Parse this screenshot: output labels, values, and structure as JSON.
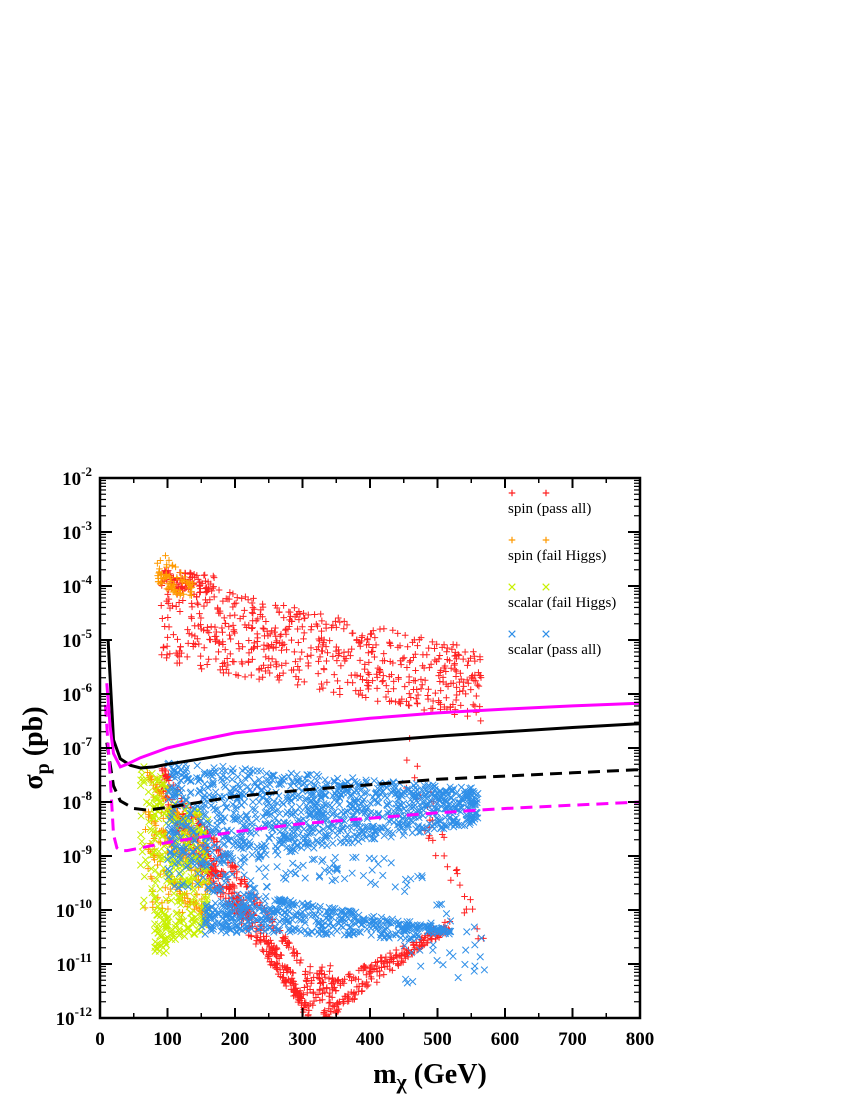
{
  "chart_data": {
    "type": "scatter",
    "title": "",
    "xlabel": "m",
    "xlabel_sub": "χ",
    "xlabel_unit": " (GeV)",
    "ylabel": "σ",
    "ylabel_sub": "p",
    "ylabel_unit": " (pb)",
    "xlim": [
      0,
      800
    ],
    "ylim_log10": [
      -12,
      -2
    ],
    "y_scale": "log",
    "x_ticks": [
      0,
      100,
      200,
      300,
      400,
      500,
      600,
      700,
      800
    ],
    "x_tick_labels": [
      "0",
      "100",
      "200",
      "300",
      "400",
      "500",
      "600",
      "700",
      "800"
    ],
    "y_tick_exponents": [
      -12,
      -11,
      -10,
      -9,
      -8,
      -7,
      -6,
      -5,
      -4,
      -3,
      -2
    ],
    "y_tick_labels": [
      "10",
      "10",
      "10",
      "10",
      "10",
      "10",
      "10",
      "10",
      "10",
      "10",
      "10"
    ],
    "y_tick_sups": [
      "-12",
      "-11",
      "-10",
      "-9",
      "-8",
      "-7",
      "-6",
      "-5",
      "-4",
      "-3",
      "-2"
    ],
    "grid": false,
    "legend_position": "top-right",
    "series": [
      {
        "name": "spin (pass all)",
        "marker": "plus",
        "color": "#ff2020",
        "regions": [
          {
            "kind": "band",
            "x": [
              90,
              565
            ],
            "lo_log": [
              -5.4,
              -6.5
            ],
            "hi_log": [
              -3.8,
              -5.2
            ],
            "n": 600
          },
          {
            "kind": "band",
            "x": [
              90,
              170
            ],
            "lo_log": [
              -4.0,
              -4.2
            ],
            "hi_log": [
              -3.7,
              -3.8
            ],
            "n": 80
          },
          {
            "kind": "diag",
            "from": [
              90,
              -7.4
            ],
            "to": [
              300,
              -11.0
            ],
            "spread": 0.1,
            "n": 130
          },
          {
            "kind": "diag",
            "from": [
              90,
              -7.7
            ],
            "to": [
              290,
              -11.3
            ],
            "spread": 0.1,
            "n": 130
          },
          {
            "kind": "diag",
            "from": [
              100,
              -8.1
            ],
            "to": [
              300,
              -11.6
            ],
            "spread": 0.1,
            "n": 130
          },
          {
            "kind": "diag",
            "from": [
              110,
              -8.5
            ],
            "to": [
              310,
              -11.9
            ],
            "spread": 0.1,
            "n": 130
          },
          {
            "kind": "diag",
            "from": [
              330,
              -12.0
            ],
            "to": [
              520,
              -10.2
            ],
            "spread": 0.1,
            "n": 110
          },
          {
            "kind": "diag",
            "from": [
              320,
              -11.6
            ],
            "to": [
              520,
              -10.3
            ],
            "spread": 0.1,
            "n": 110
          },
          {
            "kind": "band",
            "x": [
              300,
              345
            ],
            "lo_log": [
              -12.0,
              -12.0
            ],
            "hi_log": [
              -11.0,
              -11.0
            ],
            "n": 60
          },
          {
            "kind": "band",
            "x": [
              450,
              570
            ],
            "lo_log": [
              -7.8,
              -10.9
            ],
            "hi_log": [
              -6.5,
              -10.4
            ],
            "n": 35
          }
        ]
      },
      {
        "name": "spin (fail Higgs)",
        "marker": "plus",
        "color": "#ff9a00",
        "regions": [
          {
            "kind": "band",
            "x": [
              85,
              140
            ],
            "lo_log": [
              -4.0,
              -4.3
            ],
            "hi_log": [
              -3.3,
              -3.9
            ],
            "n": 70
          },
          {
            "kind": "diag",
            "from": [
              70,
              -7.5
            ],
            "to": [
              160,
              -9.0
            ],
            "spread": 0.08,
            "n": 60
          },
          {
            "kind": "diag",
            "from": [
              70,
              -8.2
            ],
            "to": [
              160,
              -9.6
            ],
            "spread": 0.08,
            "n": 60
          },
          {
            "kind": "diag",
            "from": [
              70,
              -8.9
            ],
            "to": [
              160,
              -10.2
            ],
            "spread": 0.08,
            "n": 50
          },
          {
            "kind": "band",
            "x": [
              65,
              165
            ],
            "lo_log": [
              -10.0,
              -10.4
            ],
            "hi_log": [
              -7.3,
              -8.4
            ],
            "n": 90
          }
        ]
      },
      {
        "name": "scalar (fail Higgs)",
        "marker": "cross",
        "color": "#c8f000",
        "regions": [
          {
            "kind": "band",
            "x": [
              60,
              160
            ],
            "lo_log": [
              -10.0,
              -10.4
            ],
            "hi_log": [
              -7.2,
              -8.3
            ],
            "n": 260
          },
          {
            "kind": "band",
            "x": [
              80,
              100
            ],
            "lo_log": [
              -10.8,
              -10.8
            ],
            "hi_log": [
              -10.0,
              -10.0
            ],
            "n": 40
          },
          {
            "kind": "band",
            "x": [
              95,
              155
            ],
            "lo_log": [
              -10.6,
              -10.4
            ],
            "hi_log": [
              -10.2,
              -10.1
            ],
            "n": 40
          }
        ]
      },
      {
        "name": "scalar (pass all)",
        "marker": "cross",
        "color": "#2f8fe8",
        "regions": [
          {
            "kind": "band",
            "x": [
              100,
              560
            ],
            "lo_log": [
              -9.3,
              -8.4
            ],
            "hi_log": [
              -7.25,
              -7.75
            ],
            "n": 1100
          },
          {
            "kind": "band",
            "x": [
              100,
              470
            ],
            "lo_log": [
              -9.6,
              -9.6
            ],
            "hi_log": [
              -9.0,
              -9.0
            ],
            "n": 90
          },
          {
            "kind": "diag",
            "from": [
              160,
              -9.6
            ],
            "to": [
              520,
              -10.4
            ],
            "spread": 0.05,
            "n": 120
          },
          {
            "kind": "diag",
            "from": [
              180,
              -9.9
            ],
            "to": [
              520,
              -10.4
            ],
            "spread": 0.05,
            "n": 110
          },
          {
            "kind": "diag",
            "from": [
              160,
              -10.1
            ],
            "to": [
              500,
              -10.4
            ],
            "spread": 0.05,
            "n": 100
          },
          {
            "kind": "diag",
            "from": [
              150,
              -10.3
            ],
            "to": [
              480,
              -10.5
            ],
            "spread": 0.05,
            "n": 90
          },
          {
            "kind": "band",
            "x": [
              155,
              230
            ],
            "lo_log": [
              -10.5,
              -10.4
            ],
            "hi_log": [
              -9.8,
              -9.7
            ],
            "n": 80
          },
          {
            "kind": "band",
            "x": [
              450,
              570
            ],
            "lo_log": [
              -11.4,
              -11.2
            ],
            "hi_log": [
              -9.0,
              -10.4
            ],
            "n": 35
          }
        ]
      }
    ],
    "curves": [
      {
        "id": "solid-black",
        "style": "solid",
        "color": "#000000",
        "points": [
          [
            12,
            -5.0
          ],
          [
            20,
            -6.85
          ],
          [
            30,
            -7.2
          ],
          [
            45,
            -7.32
          ],
          [
            60,
            -7.37
          ],
          [
            80,
            -7.35
          ],
          [
            100,
            -7.3
          ],
          [
            150,
            -7.2
          ],
          [
            200,
            -7.1
          ],
          [
            300,
            -7.0
          ],
          [
            400,
            -6.88
          ],
          [
            500,
            -6.78
          ],
          [
            600,
            -6.7
          ],
          [
            700,
            -6.62
          ],
          [
            800,
            -6.55
          ]
        ]
      },
      {
        "id": "solid-magenta",
        "style": "solid",
        "color": "#ff00ff",
        "points": [
          [
            10,
            -5.8
          ],
          [
            15,
            -6.6
          ],
          [
            20,
            -7.1
          ],
          [
            30,
            -7.35
          ],
          [
            40,
            -7.3
          ],
          [
            60,
            -7.18
          ],
          [
            100,
            -7.0
          ],
          [
            150,
            -6.85
          ],
          [
            200,
            -6.72
          ],
          [
            300,
            -6.58
          ],
          [
            400,
            -6.45
          ],
          [
            500,
            -6.35
          ],
          [
            600,
            -6.28
          ],
          [
            700,
            -6.22
          ],
          [
            800,
            -6.17
          ]
        ]
      },
      {
        "id": "dashed-black",
        "style": "dashed",
        "color": "#000000",
        "points": [
          [
            10,
            -6.9
          ],
          [
            20,
            -7.7
          ],
          [
            30,
            -7.98
          ],
          [
            50,
            -8.12
          ],
          [
            70,
            -8.15
          ],
          [
            100,
            -8.1
          ],
          [
            150,
            -8.0
          ],
          [
            200,
            -7.9
          ],
          [
            300,
            -7.78
          ],
          [
            400,
            -7.68
          ],
          [
            500,
            -7.58
          ],
          [
            600,
            -7.52
          ],
          [
            700,
            -7.46
          ],
          [
            800,
            -7.4
          ]
        ]
      },
      {
        "id": "dashed-magenta",
        "style": "dashed",
        "color": "#ff00ff",
        "points": [
          [
            8,
            -6.2
          ],
          [
            15,
            -7.5
          ],
          [
            20,
            -8.6
          ],
          [
            25,
            -8.85
          ],
          [
            30,
            -8.9
          ],
          [
            40,
            -8.9
          ],
          [
            60,
            -8.85
          ],
          [
            100,
            -8.75
          ],
          [
            150,
            -8.65
          ],
          [
            200,
            -8.55
          ],
          [
            300,
            -8.4
          ],
          [
            400,
            -8.3
          ],
          [
            500,
            -8.2
          ],
          [
            600,
            -8.12
          ],
          [
            700,
            -8.06
          ],
          [
            800,
            -8.0
          ]
        ]
      }
    ]
  }
}
